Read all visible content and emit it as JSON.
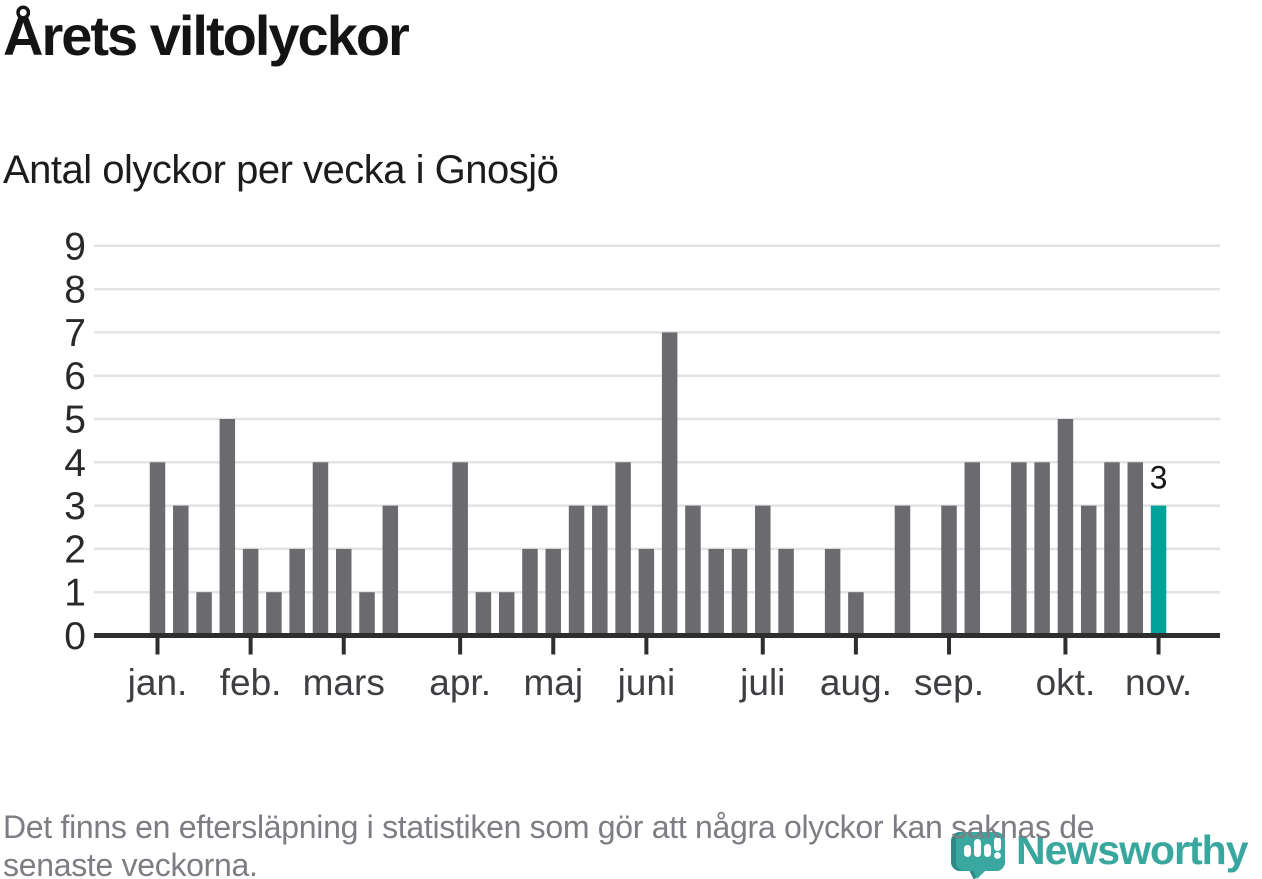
{
  "header": {
    "title": "Årets viltolyckor",
    "subtitle": "Antal olyckor per vecka i Gnosjö"
  },
  "chart_data": {
    "type": "bar",
    "title": "Årets viltolyckor",
    "subtitle": "Antal olyckor per vecka i Gnosjö",
    "ylabel": "",
    "xlabel": "",
    "values": [
      4,
      3,
      1,
      5,
      2,
      1,
      2,
      4,
      2,
      1,
      3,
      0,
      0,
      4,
      1,
      1,
      2,
      2,
      3,
      3,
      4,
      2,
      7,
      3,
      2,
      2,
      3,
      2,
      0,
      2,
      1,
      0,
      3,
      0,
      3,
      4,
      0,
      4,
      4,
      5,
      3,
      4,
      4,
      3
    ],
    "first_week": 1,
    "ylim": [
      0,
      9
    ],
    "y_ticks": [
      0,
      1,
      2,
      3,
      4,
      5,
      6,
      7,
      8,
      9
    ],
    "x_tick_labels": [
      "jan.",
      "feb.",
      "mars",
      "apr.",
      "maj",
      "juni",
      "juli",
      "aug.",
      "sep.",
      "okt.",
      "nov."
    ],
    "x_tick_weeks": [
      1,
      5,
      9,
      14,
      18,
      22,
      27,
      31,
      35,
      40,
      44
    ],
    "grid": true,
    "legend": "none",
    "bar_color": "#6a6a6f",
    "highlight_color": "#00a39a",
    "highlight_week": 44,
    "annotation": {
      "week": 44,
      "text": "3"
    }
  },
  "footer": {
    "line1": "Det finns en eftersläpning i statistiken som gör att några olyckor kan saknas de",
    "line2": "senaste veckorna."
  },
  "logo": {
    "wordmark": "Newsworthy",
    "icon": "newsworthy-bubble-chart-icon",
    "color": "#3aa79f"
  }
}
